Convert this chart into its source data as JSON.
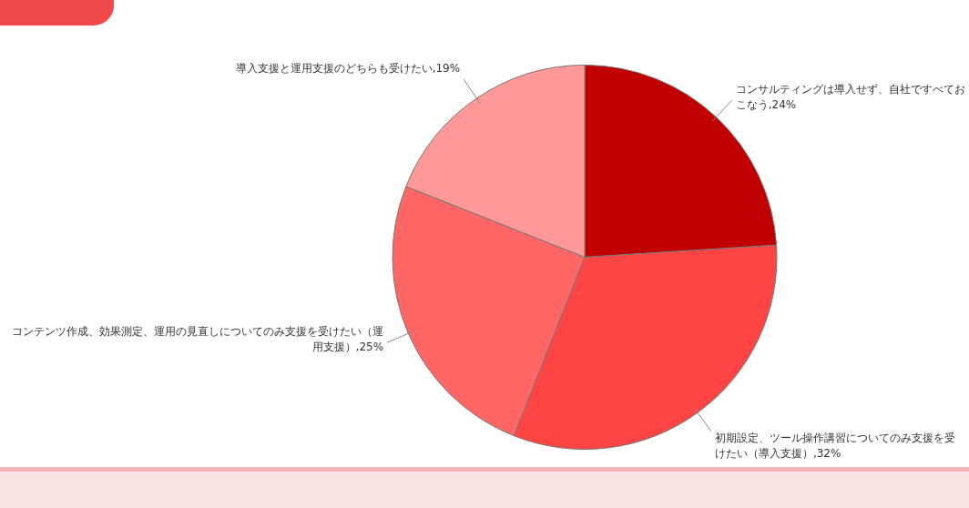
{
  "chart_data": {
    "type": "pie",
    "categories": [
      "コンサルティングは導入せず、自社ですべておこなう",
      "初期設定、ツール操作講習についてのみ支援を受けたい（導入支援）",
      "コンテンツ作成、効果測定、運用の見直しについてのみ支援を受けたい（運用支援）",
      "導入支援と運用支援のどちらも受けたい"
    ],
    "values": [
      24,
      32,
      25,
      19
    ],
    "value_labels": [
      "24%",
      "32%",
      "25%",
      "19%"
    ],
    "colors": [
      "#c00000",
      "#ff4444",
      "#ff6666",
      "#ff9999"
    ],
    "legend": false
  }
}
